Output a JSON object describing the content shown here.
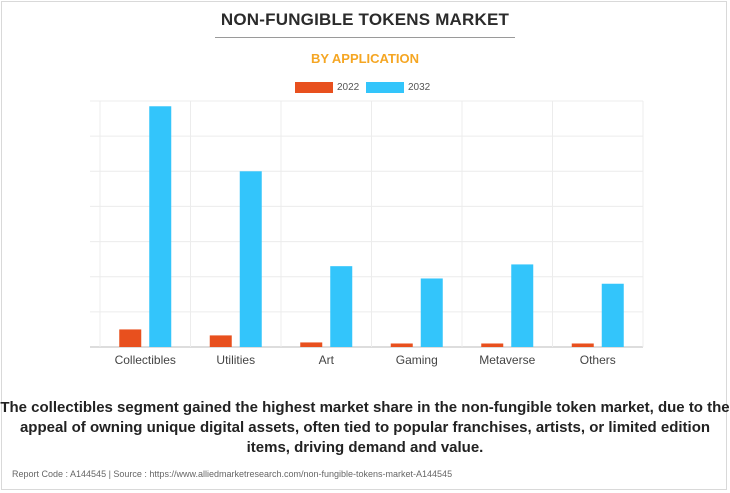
{
  "colors": {
    "s2022": "#e8501e",
    "s2032": "#33c5fb",
    "title": "#2b2b2b",
    "subtitle": "#f5a623"
  },
  "chart_data": {
    "type": "bar",
    "title": "NON-FUNGIBLE TOKENS MARKET",
    "subtitle": "BY APPLICATION",
    "categories": [
      "Collectibles",
      "Utilities",
      "Art",
      "Gaming",
      "Metaverse",
      "Others"
    ],
    "series": [
      {
        "name": "2022",
        "values": [
          0.5,
          0.33,
          0.13,
          0.1,
          0.1,
          0.1
        ]
      },
      {
        "name": "2032",
        "values": [
          6.85,
          5.0,
          2.3,
          1.95,
          2.35,
          1.8
        ]
      }
    ],
    "ylim": [
      0,
      7
    ],
    "grid": true,
    "legend": "top-center",
    "xlabel": "",
    "ylabel": ""
  },
  "footer_text": "The collectibles segment gained the highest market share in the non-fungible token market, due to the appeal of owning unique digital assets, often tied to popular franchises, artists, or limited edition items, driving demand and value.",
  "source_text": "Report Code : A144545  |  Source : https://www.alliedmarketresearch.com/non-fungible-tokens-market-A144545"
}
